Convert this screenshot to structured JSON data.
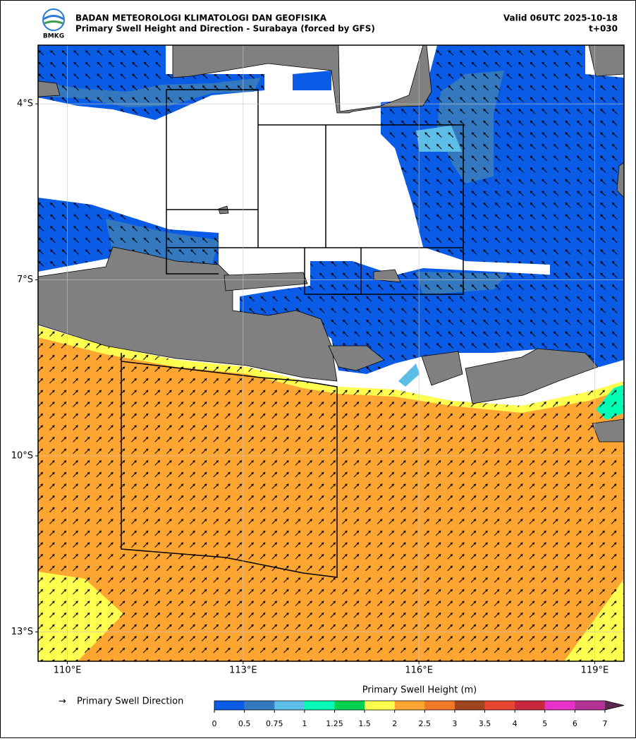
{
  "header": {
    "logo": "BMKG",
    "agency": "BADAN METEOROLOGI KLIMATOLOGI DAN GEOFISIKA",
    "subtitle": "Primary Swell Height and Direction - Surabaya (forced by GFS)",
    "valid": "Valid 06UTC 2025-10-18",
    "lead": "t+030"
  },
  "map": {
    "lon_extent": [
      109.5,
      119.5
    ],
    "lat_extent": [
      -13.5,
      -3
    ],
    "lon_ticks": [
      {
        "value": 110,
        "label": "110°E"
      },
      {
        "value": 113,
        "label": "113°E"
      },
      {
        "value": 116,
        "label": "116°E"
      },
      {
        "value": 119,
        "label": "119°E"
      }
    ],
    "lat_ticks": [
      {
        "value": -4,
        "label": "4°S"
      },
      {
        "value": -7,
        "label": "7°S"
      },
      {
        "value": -10,
        "label": "10°S"
      },
      {
        "value": -13,
        "label": "13°S"
      }
    ],
    "grid": true
  },
  "legend": {
    "arrow_label": "Primary Swell Direction",
    "colorbar_title": "Primary Swell Height (m)",
    "levels": [
      0,
      0.5,
      0.75,
      1,
      1.25,
      1.5,
      2,
      2.5,
      3,
      3.5,
      4,
      5,
      6,
      7
    ],
    "colors": [
      "#0a5ce6",
      "#3478bf",
      "#5cbde6",
      "#00ffb4",
      "#00d24f",
      "#ffff50",
      "#ffa532",
      "#f07828",
      "#a0461e",
      "#e64632",
      "#c8283c",
      "#e632c8",
      "#b43296",
      "#5a2850"
    ]
  }
}
